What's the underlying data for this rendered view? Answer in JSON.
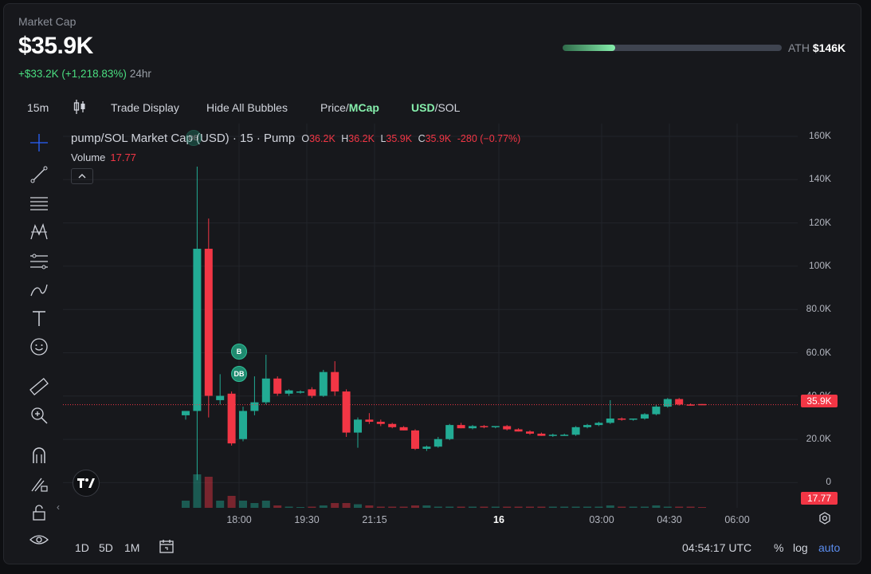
{
  "header": {
    "market_cap_label": "Market Cap",
    "market_cap_value": "$35.9K",
    "change_value": "+$33.2K (+1,218.83%)",
    "change_period": "24hr",
    "ath_label": "ATH",
    "ath_value": "$146K",
    "ath_progress_percent": 24
  },
  "toolbar": {
    "interval": "15m",
    "trade_display": "Trade Display",
    "hide_bubbles": "Hide All Bubbles",
    "price_label": "Price/",
    "mcap_label": "MCap",
    "usd_label": "USD",
    "sol_label": "/SOL"
  },
  "legend": {
    "title": "pump/SOL Market Cap (USD) · 15 · Pump",
    "open_key": "O",
    "open": "36.2K",
    "high_key": "H",
    "high": "36.2K",
    "low_key": "L",
    "low": "35.9K",
    "close_key": "C",
    "close": "35.9K",
    "change": "-280 (−0.77%)",
    "volume_label": "Volume",
    "volume_value": "17.77"
  },
  "markers": {
    "buy": "B",
    "dev_buy": "DB"
  },
  "price_axis": {
    "ticks": [
      "160K",
      "140K",
      "120K",
      "100K",
      "80.0K",
      "60.0K",
      "40.0K",
      "20.0K",
      "0"
    ],
    "current_price_tag": "35.9K",
    "volume_tag": "17.77"
  },
  "time_axis": {
    "ticks": [
      "18:00",
      "19:30",
      "21:15",
      "16",
      "03:00",
      "04:30",
      "06:00"
    ]
  },
  "bottom_bar": {
    "range_1d": "1D",
    "range_5d": "5D",
    "range_1m": "1M",
    "clock": "04:54:17 UTC",
    "percent": "%",
    "log": "log",
    "auto": "auto"
  },
  "colors": {
    "up": "#22ab94",
    "down": "#f23645",
    "accent": "#86efac"
  },
  "icons": [
    "crosshair-icon",
    "trendline-icon",
    "fib-icon",
    "pattern-icon",
    "forecast-icon",
    "brush-icon",
    "text-icon",
    "emoji-icon",
    "ruler-icon",
    "zoom-icon",
    "magnet-icon",
    "lock-pencil-icon",
    "lock-icon",
    "eye-icon",
    "candles-icon",
    "calendar-icon",
    "settings-icon"
  ],
  "chart_data": {
    "type": "candlestick",
    "title": "pump/SOL Market Cap (USD) · 15 · Pump",
    "ylim": [
      0,
      165000
    ],
    "candles": [
      {
        "o": 31000,
        "h": 33000,
        "l": 29000,
        "c": 33000
      },
      {
        "o": 33000,
        "h": 146000,
        "l": 1000,
        "c": 108000
      },
      {
        "o": 108000,
        "h": 122000,
        "l": 30000,
        "c": 40000
      },
      {
        "o": 38000,
        "h": 50000,
        "l": 36000,
        "c": 40000
      },
      {
        "o": 41000,
        "h": 42000,
        "l": 17000,
        "c": 18000
      },
      {
        "o": 20000,
        "h": 35000,
        "l": 19000,
        "c": 33000
      },
      {
        "o": 33000,
        "h": 49000,
        "l": 31000,
        "c": 37000
      },
      {
        "o": 37000,
        "h": 59000,
        "l": 36000,
        "c": 48000
      },
      {
        "o": 48000,
        "h": 49000,
        "l": 40000,
        "c": 41000
      },
      {
        "o": 41000,
        "h": 43000,
        "l": 40000,
        "c": 42500
      },
      {
        "o": 42000,
        "h": 42500,
        "l": 41000,
        "c": 42000
      },
      {
        "o": 43000,
        "h": 44000,
        "l": 39000,
        "c": 40000
      },
      {
        "o": 40000,
        "h": 52000,
        "l": 39500,
        "c": 51000
      },
      {
        "o": 51000,
        "h": 56000,
        "l": 40000,
        "c": 42000
      },
      {
        "o": 42000,
        "h": 43000,
        "l": 21000,
        "c": 23000
      },
      {
        "o": 23000,
        "h": 30000,
        "l": 16000,
        "c": 29000
      },
      {
        "o": 29000,
        "h": 32000,
        "l": 27000,
        "c": 28000
      },
      {
        "o": 28000,
        "h": 29000,
        "l": 26000,
        "c": 27000
      },
      {
        "o": 27000,
        "h": 27500,
        "l": 25000,
        "c": 25500
      },
      {
        "o": 25500,
        "h": 26000,
        "l": 24000,
        "c": 24000
      },
      {
        "o": 24000,
        "h": 24500,
        "l": 15000,
        "c": 15500
      },
      {
        "o": 15500,
        "h": 17000,
        "l": 14500,
        "c": 16500
      },
      {
        "o": 16500,
        "h": 21000,
        "l": 16000,
        "c": 20000
      },
      {
        "o": 20000,
        "h": 27000,
        "l": 19500,
        "c": 26500
      },
      {
        "o": 26500,
        "h": 27500,
        "l": 25000,
        "c": 25000
      },
      {
        "o": 25000,
        "h": 26500,
        "l": 24500,
        "c": 26000
      },
      {
        "o": 26000,
        "h": 26500,
        "l": 25000,
        "c": 25500
      },
      {
        "o": 25500,
        "h": 26000,
        "l": 25000,
        "c": 26000
      },
      {
        "o": 26000,
        "h": 26500,
        "l": 24000,
        "c": 24500
      },
      {
        "o": 24500,
        "h": 25000,
        "l": 23500,
        "c": 23500
      },
      {
        "o": 23500,
        "h": 24000,
        "l": 22000,
        "c": 22500
      },
      {
        "o": 22500,
        "h": 23000,
        "l": 21500,
        "c": 21500
      },
      {
        "o": 21500,
        "h": 22500,
        "l": 21000,
        "c": 22000
      },
      {
        "o": 22000,
        "h": 22500,
        "l": 21500,
        "c": 22000
      },
      {
        "o": 22000,
        "h": 26000,
        "l": 21500,
        "c": 25500
      },
      {
        "o": 25500,
        "h": 27000,
        "l": 25000,
        "c": 26500
      },
      {
        "o": 26500,
        "h": 28000,
        "l": 26000,
        "c": 27500
      },
      {
        "o": 27500,
        "h": 38000,
        "l": 27000,
        "c": 29500
      },
      {
        "o": 29500,
        "h": 30000,
        "l": 28500,
        "c": 29000
      },
      {
        "o": 29000,
        "h": 29500,
        "l": 28500,
        "c": 29500
      },
      {
        "o": 29500,
        "h": 32000,
        "l": 29000,
        "c": 31500
      },
      {
        "o": 31500,
        "h": 36000,
        "l": 31000,
        "c": 35000
      },
      {
        "o": 35000,
        "h": 39000,
        "l": 34500,
        "c": 38500
      },
      {
        "o": 38500,
        "h": 39000,
        "l": 35500,
        "c": 36000
      },
      {
        "o": 36000,
        "h": 36500,
        "l": 35500,
        "c": 35800
      },
      {
        "o": 36200,
        "h": 36200,
        "l": 35900,
        "c": 35900
      }
    ],
    "volume": [
      3,
      14,
      13,
      3,
      5,
      3,
      2,
      3,
      1,
      0.5,
      0.3,
      0.5,
      1,
      2,
      2,
      1.5,
      1,
      0.5,
      0.5,
      0.5,
      1,
      1,
      0.5,
      0.5,
      0.5,
      0.5,
      0.5,
      0.5,
      0.5,
      0.5,
      0.5,
      0.5,
      0.5,
      0.5,
      0.5,
      0.5,
      0.5,
      1,
      0.5,
      0.5,
      0.5,
      1,
      0.5,
      0.5,
      0.5,
      0.3
    ]
  }
}
